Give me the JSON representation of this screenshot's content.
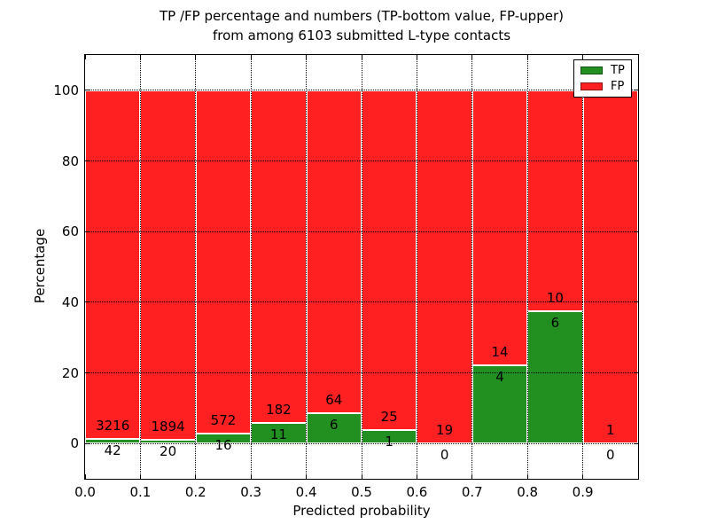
{
  "title": {
    "line1": "TP /FP percentage and numbers (TP-bottom value, FP-upper)",
    "line2": "from among 6103 submitted L-type contacts"
  },
  "axes": {
    "xlabel": "Predicted probability",
    "ylabel": "Percentage",
    "x_ticks": [
      "0.0",
      "0.1",
      "0.2",
      "0.3",
      "0.4",
      "0.5",
      "0.6",
      "0.7",
      "0.8",
      "0.9"
    ],
    "y_ticks": [
      0,
      20,
      40,
      60,
      80,
      100
    ],
    "xlim": [
      0.0,
      1.0
    ],
    "ylim": [
      -10,
      110
    ],
    "grid": "dotted"
  },
  "legend": {
    "position": "upper-right",
    "items": [
      {
        "label": "TP",
        "color": "#219021"
      },
      {
        "label": "FP",
        "color": "#ff2121"
      }
    ]
  },
  "chart_data": {
    "type": "bar",
    "stacked": true,
    "normalized_to_percent": 100,
    "title": "TP /FP percentage and numbers (TP-bottom value, FP-upper) from among 6103 submitted L-type contacts",
    "xlabel": "Predicted probability",
    "ylabel": "Percentage",
    "categories": [
      "0.0-0.1",
      "0.1-0.2",
      "0.2-0.3",
      "0.3-0.4",
      "0.4-0.5",
      "0.5-0.6",
      "0.6-0.7",
      "0.7-0.8",
      "0.8-0.9",
      "0.9-1.0"
    ],
    "bin_edges": [
      0.0,
      0.1,
      0.2,
      0.3,
      0.4,
      0.5,
      0.6,
      0.7,
      0.8,
      0.9,
      1.0
    ],
    "series": [
      {
        "name": "TP",
        "color": "#219021",
        "counts": [
          42,
          20,
          16,
          11,
          6,
          1,
          0,
          4,
          6,
          0
        ]
      },
      {
        "name": "FP",
        "color": "#ff2121",
        "counts": [
          3216,
          1894,
          572,
          182,
          64,
          25,
          19,
          14,
          10,
          1
        ]
      }
    ],
    "tp_percent_of_bin": [
      1.29,
      1.04,
      2.72,
      5.7,
      8.57,
      3.85,
      0.0,
      22.22,
      37.5,
      0.0
    ],
    "total_contacts": 6103,
    "ylim": [
      -10,
      110
    ],
    "legend_position": "upper right"
  }
}
